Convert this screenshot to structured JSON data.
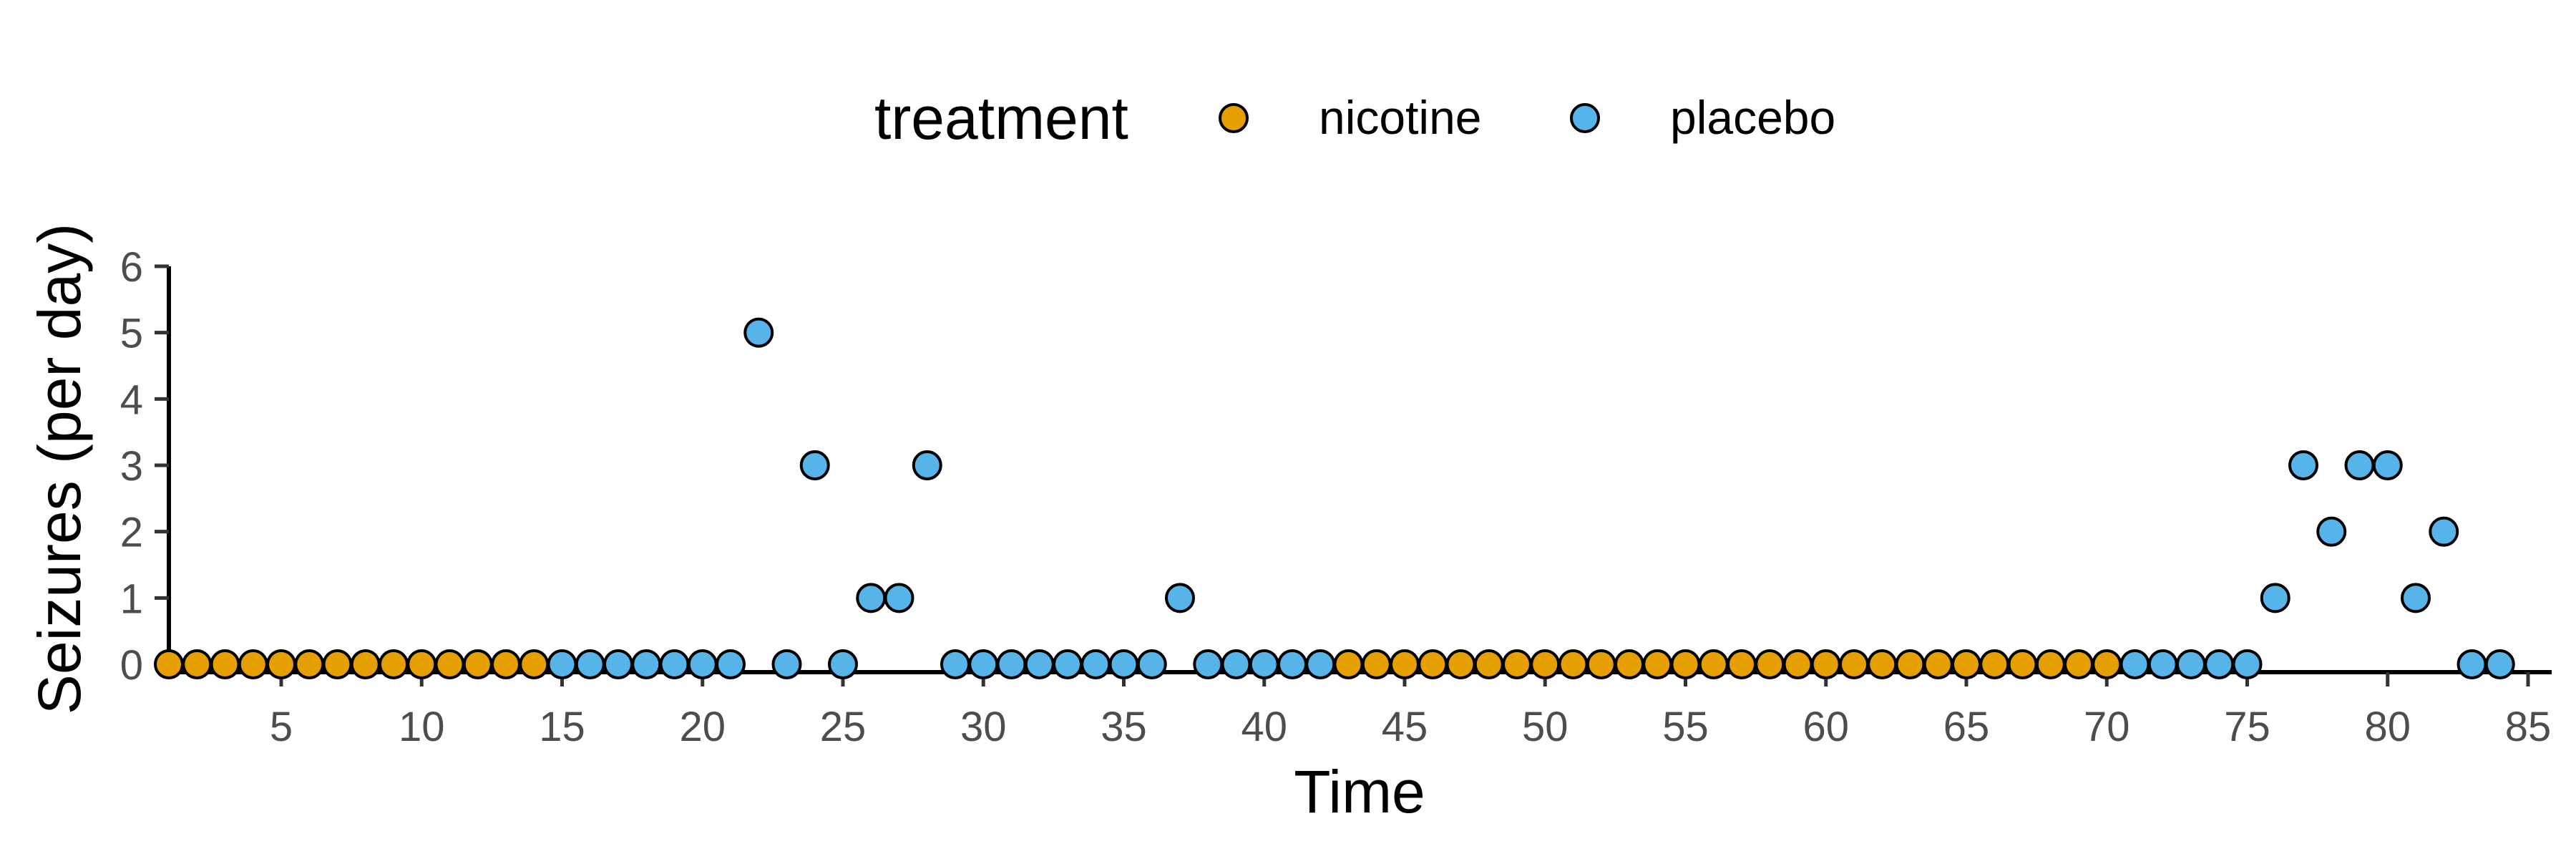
{
  "chart_data": {
    "type": "scatter",
    "xlabel": "Time",
    "ylabel": "Seizures (per day)",
    "xlim": [
      1,
      86
    ],
    "ylim": [
      0,
      6
    ],
    "x_ticks": [
      5,
      10,
      15,
      20,
      25,
      30,
      35,
      40,
      45,
      50,
      55,
      60,
      65,
      70,
      75,
      80,
      85
    ],
    "y_ticks": [
      0,
      1,
      2,
      3,
      4,
      5,
      6
    ],
    "grid": false,
    "legend": {
      "title": "treatment",
      "position": "top",
      "entries": [
        {
          "label": "nicotine",
          "color": "#E69F00"
        },
        {
          "label": "placebo",
          "color": "#56B4E9"
        }
      ]
    },
    "series": [
      {
        "name": "nicotine",
        "color": "#E69F00",
        "points": [
          [
            1,
            0
          ],
          [
            2,
            0
          ],
          [
            3,
            0
          ],
          [
            4,
            0
          ],
          [
            5,
            0
          ],
          [
            6,
            0
          ],
          [
            7,
            0
          ],
          [
            8,
            0
          ],
          [
            9,
            0
          ],
          [
            10,
            0
          ],
          [
            11,
            0
          ],
          [
            12,
            0
          ],
          [
            13,
            0
          ],
          [
            14,
            0
          ],
          [
            43,
            0
          ],
          [
            44,
            0
          ],
          [
            45,
            0
          ],
          [
            46,
            0
          ],
          [
            47,
            0
          ],
          [
            48,
            0
          ],
          [
            49,
            0
          ],
          [
            50,
            0
          ],
          [
            51,
            0
          ],
          [
            52,
            0
          ],
          [
            53,
            0
          ],
          [
            54,
            0
          ],
          [
            55,
            0
          ],
          [
            56,
            0
          ],
          [
            57,
            0
          ],
          [
            58,
            0
          ],
          [
            59,
            0
          ],
          [
            60,
            0
          ],
          [
            61,
            0
          ],
          [
            62,
            0
          ],
          [
            63,
            0
          ],
          [
            64,
            0
          ],
          [
            65,
            0
          ],
          [
            66,
            0
          ],
          [
            67,
            0
          ],
          [
            68,
            0
          ],
          [
            69,
            0
          ],
          [
            70,
            0
          ]
        ]
      },
      {
        "name": "placebo",
        "color": "#56B4E9",
        "points": [
          [
            15,
            0
          ],
          [
            16,
            0
          ],
          [
            17,
            0
          ],
          [
            18,
            0
          ],
          [
            19,
            0
          ],
          [
            20,
            0
          ],
          [
            21,
            0
          ],
          [
            22,
            5
          ],
          [
            23,
            0
          ],
          [
            24,
            3
          ],
          [
            25,
            0
          ],
          [
            26,
            1
          ],
          [
            27,
            1
          ],
          [
            28,
            3
          ],
          [
            29,
            0
          ],
          [
            30,
            0
          ],
          [
            31,
            0
          ],
          [
            32,
            0
          ],
          [
            33,
            0
          ],
          [
            34,
            0
          ],
          [
            35,
            0
          ],
          [
            36,
            0
          ],
          [
            37,
            1
          ],
          [
            38,
            0
          ],
          [
            39,
            0
          ],
          [
            40,
            0
          ],
          [
            41,
            0
          ],
          [
            42,
            0
          ],
          [
            71,
            0
          ],
          [
            72,
            0
          ],
          [
            73,
            0
          ],
          [
            74,
            0
          ],
          [
            75,
            0
          ],
          [
            76,
            1
          ],
          [
            77,
            3
          ],
          [
            78,
            2
          ],
          [
            79,
            3
          ],
          [
            80,
            3
          ],
          [
            81,
            1
          ],
          [
            82,
            2
          ],
          [
            83,
            0
          ],
          [
            84,
            0
          ]
        ]
      }
    ]
  }
}
